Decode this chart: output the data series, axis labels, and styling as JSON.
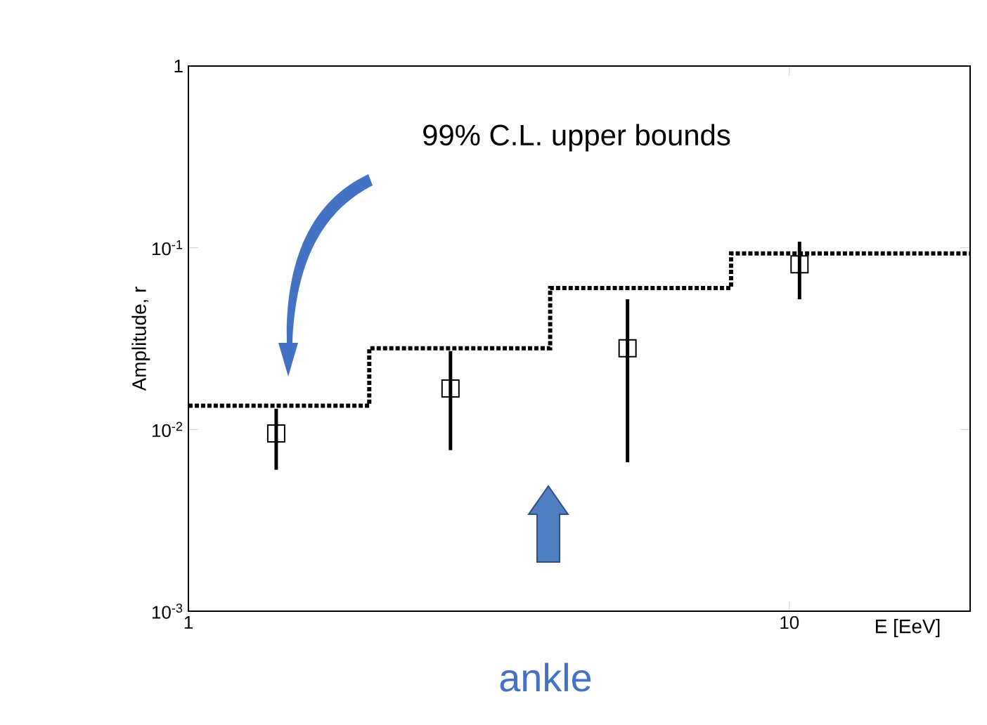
{
  "chart_data": {
    "type": "scatter",
    "xlabel": "E [EeV]",
    "ylabel": "Amplitude, r",
    "log": "xy",
    "xlim": [
      1,
      20
    ],
    "ylim": [
      0.001,
      1
    ],
    "xticks": [
      1,
      10
    ],
    "yticks": [
      {
        "value": 0.001,
        "label": "10$^{-3}$"
      },
      {
        "value": 0.01,
        "label": "10$^{-2}$"
      },
      {
        "value": 0.1,
        "label": "10$^{-1}$"
      },
      1
    ],
    "series": [
      {
        "type": "step",
        "color": "#000000",
        "line_style": "dotted",
        "x": [
          1,
          2,
          4,
          8,
          20
        ],
        "values": [
          0.0135,
          0.028,
          0.06,
          0.093,
          0.093
        ]
      },
      {
        "marker": "square",
        "color": "#000000",
        "x": [
          1.4,
          2.73,
          5.38,
          10.4
        ],
        "values": [
          0.0095,
          0.0168,
          0.028,
          0.081
        ],
        "errors": [
          [
            0.006,
            0.013
          ],
          [
            0.0077,
            0.027
          ],
          [
            0.0066,
            0.052
          ],
          [
            0.052,
            0.108
          ]
        ]
      }
    ],
    "annotations": [
      "99% C.L. upper bounds",
      "ankle"
    ]
  }
}
